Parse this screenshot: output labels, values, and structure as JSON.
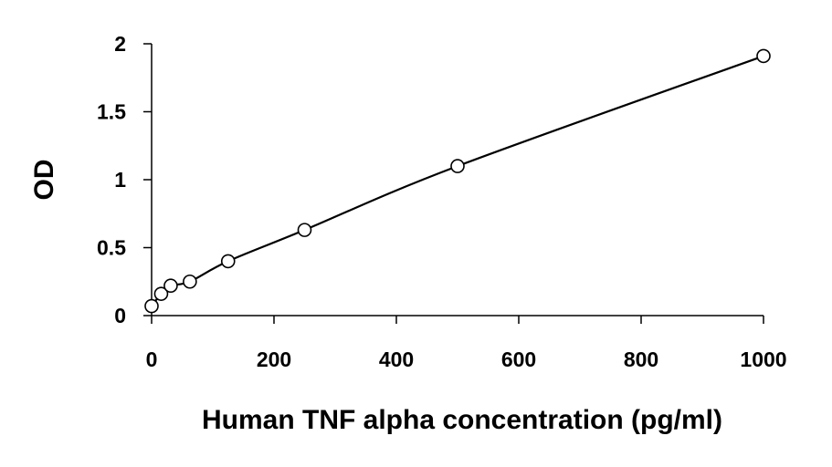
{
  "chart_data": {
    "type": "scatter",
    "title": "",
    "xlabel": "Human TNF alpha concentration (pg/ml)",
    "ylabel": "OD",
    "xlim": [
      0,
      1000
    ],
    "ylim": [
      0,
      2
    ],
    "x_ticks": [
      0,
      200,
      400,
      600,
      800,
      1000
    ],
    "y_ticks": [
      0,
      0.5,
      1,
      1.5,
      2
    ],
    "y_tick_labels": [
      "0",
      "0.5",
      "1",
      "1.5",
      "2"
    ],
    "grid": false,
    "legend": "none",
    "trendline": "smooth fit through points",
    "series": [
      {
        "marker": "open-circle",
        "x": [
          0,
          15.6,
          31.25,
          62.5,
          125,
          250,
          500,
          1000
        ],
        "y": [
          0.07,
          0.16,
          0.22,
          0.25,
          0.4,
          0.63,
          1.1,
          1.91
        ]
      }
    ]
  }
}
